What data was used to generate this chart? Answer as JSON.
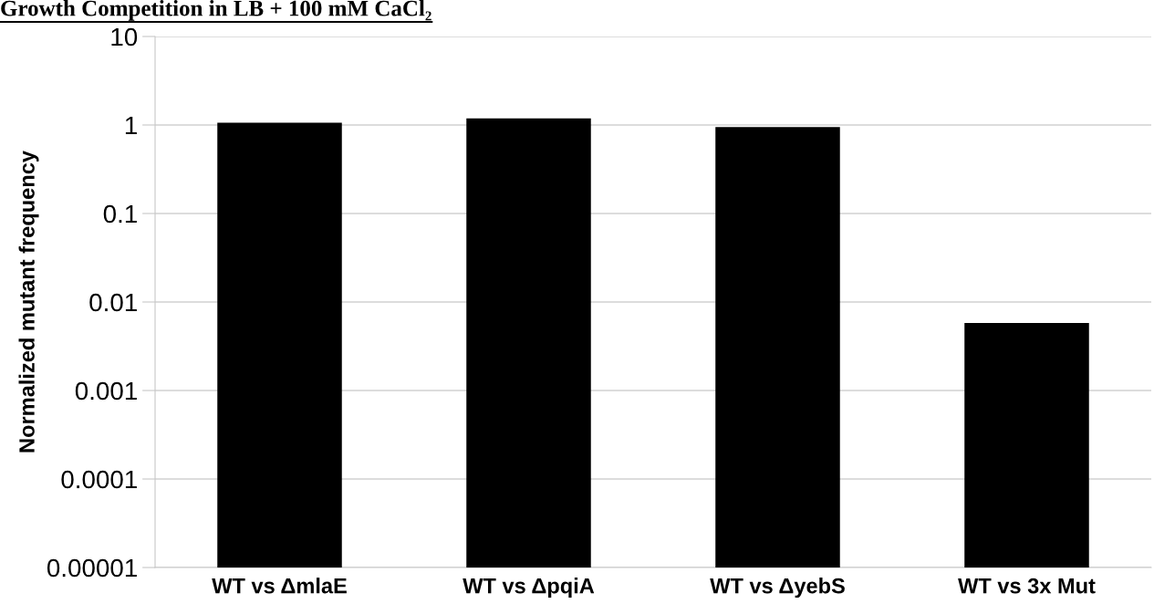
{
  "chart_data": {
    "type": "bar",
    "title": "Growth Competition in LB + 100 mM CaCl₂",
    "ylabel": "Normalized mutant frequency",
    "categories": [
      "WT vs ΔmlaE",
      "WT vs ΔpqiA",
      "WT vs ΔyebS",
      "WT vs 3x Mut"
    ],
    "values": [
      1.06,
      1.19,
      0.95,
      0.0058
    ],
    "color": "#000000",
    "log": true,
    "ylim": [
      1e-05,
      10
    ],
    "yticks": [
      {
        "value": 1e-05,
        "label": "0.00001"
      },
      {
        "value": 0.0001,
        "label": "0.0001"
      },
      {
        "value": 0.001,
        "label": "0.001"
      },
      {
        "value": 0.01,
        "label": "0.01"
      },
      0.1,
      1,
      10
    ],
    "grid": "y",
    "legend": false
  }
}
